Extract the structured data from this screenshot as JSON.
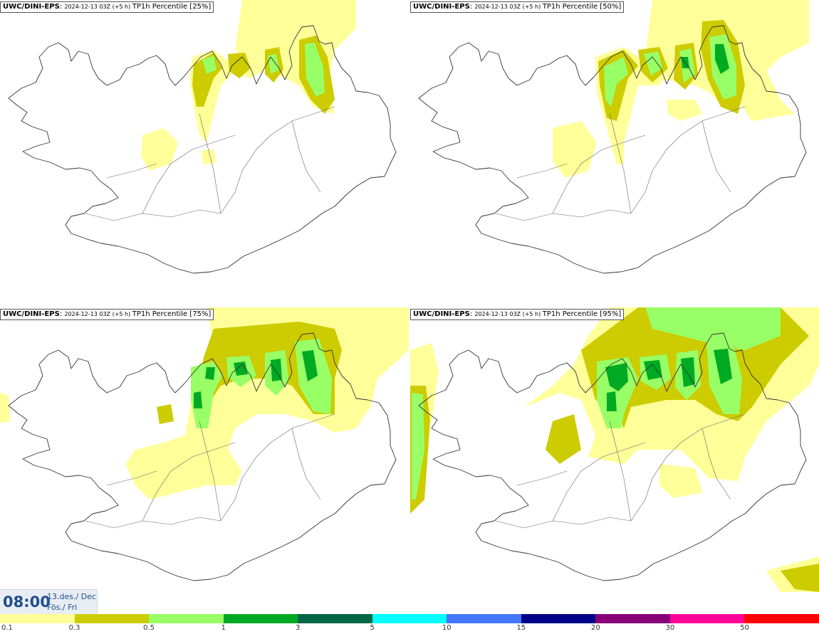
{
  "panels": [
    {
      "model": "UWC/DINI-EPS",
      "run": "2024-12-13 03Z (+5 h)",
      "title": "TP1h Percentile [25%]",
      "level": 1
    },
    {
      "model": "UWC/DINI-EPS",
      "run": "2024-12-13 03Z (+5 h)",
      "title": "TP1h Percentile [50%]",
      "level": 2
    },
    {
      "model": "UWC/DINI-EPS",
      "run": "2024-12-13 03Z (+5 h)",
      "title": "TP1h Percentile [75%]",
      "level": 3
    },
    {
      "model": "UWC/DINI-EPS",
      "run": "2024-12-13 03Z (+5 h)",
      "title": "TP1h Percentile [95%]",
      "level": 4
    }
  ],
  "timebox": {
    "time": "08:00",
    "date_line1": "13.des./ Dec",
    "date_line2": "Fös./ Fri"
  },
  "legend": {
    "colors": [
      "#ffff99",
      "#cccc00",
      "#99ff66",
      "#00aa22",
      "#006644",
      "#00ffff",
      "#4477ff",
      "#000088",
      "#880077",
      "#ff0099",
      "#ff0000"
    ],
    "ticks": [
      "0.1",
      "0.3",
      "0.5",
      "1",
      "3",
      "5",
      "10",
      "15",
      "20",
      "30",
      "50"
    ]
  },
  "palette": {
    "light": "#ffff99",
    "olive": "#cccc00",
    "lightgreen": "#99ff66",
    "green": "#00aa22",
    "coast": "#333333"
  }
}
